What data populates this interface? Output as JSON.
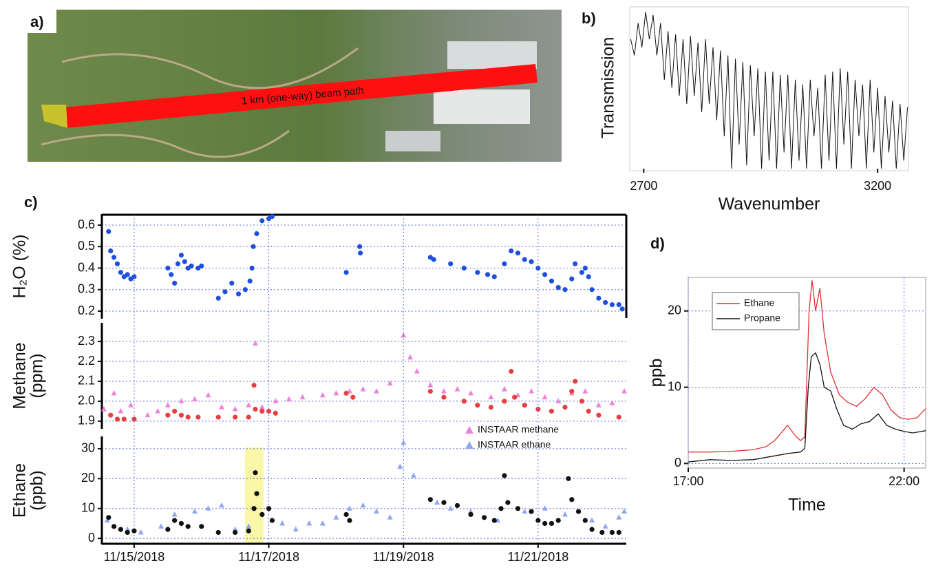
{
  "image": {
    "label": "a)",
    "annotation": "1 km (one-way) beam path"
  },
  "chart_data": [
    {
      "type": "line",
      "label": "b)",
      "xlabel": "Wavenumber",
      "ylabel": "Transmission",
      "xlim": [
        2670,
        3266
      ],
      "ylim": [
        0,
        1
      ],
      "xticks": [
        2700,
        3200
      ],
      "grid": false,
      "series": [
        {
          "color": "#111111",
          "x": [
            2672,
            2680,
            2688,
            2696,
            2704,
            2712,
            2720,
            2728,
            2736,
            2744,
            2752,
            2760,
            2768,
            2776,
            2784,
            2792,
            2800,
            2808,
            2816,
            2824,
            2832,
            2840,
            2848,
            2856,
            2864,
            2872,
            2880,
            2888,
            2896,
            2904,
            2912,
            2920,
            2928,
            2936,
            2944,
            2952,
            2960,
            2968,
            2976,
            2984,
            2992,
            3000,
            3008,
            3016,
            3024,
            3032,
            3040,
            3048,
            3056,
            3064,
            3072,
            3080,
            3088,
            3096,
            3104,
            3112,
            3120,
            3128,
            3136,
            3144,
            3152,
            3160,
            3168,
            3176,
            3184,
            3192,
            3200,
            3208,
            3216,
            3224,
            3232,
            3240,
            3248,
            3256,
            3264
          ],
          "values": [
            0.8,
            0.7,
            0.9,
            0.75,
            0.97,
            0.8,
            0.95,
            0.7,
            0.9,
            0.55,
            0.85,
            0.5,
            0.83,
            0.45,
            0.8,
            0.4,
            0.82,
            0.45,
            0.78,
            0.35,
            0.8,
            0.4,
            0.75,
            0.3,
            0.73,
            0.2,
            0.7,
            0.0,
            0.68,
            0.15,
            0.66,
            0.02,
            0.64,
            0.2,
            0.62,
            0.0,
            0.6,
            0.05,
            0.6,
            0.0,
            0.58,
            0.1,
            0.58,
            0.0,
            0.55,
            0.05,
            0.52,
            0.0,
            0.55,
            0.2,
            0.5,
            0.0,
            0.58,
            0.05,
            0.6,
            0.0,
            0.62,
            0.15,
            0.6,
            0.0,
            0.55,
            0.2,
            0.52,
            0.0,
            0.55,
            0.1,
            0.5,
            0.0,
            0.45,
            0.1,
            0.42,
            0.0,
            0.4,
            0.05,
            0.38
          ]
        }
      ]
    },
    {
      "type": "scatter",
      "label": "c)",
      "ylabel": "H₂O (%)",
      "xlim": [
        14.52,
        22.31
      ],
      "ylim": [
        0.168,
        0.648
      ],
      "yticks": [
        0.2,
        0.3,
        0.4,
        0.5,
        0.6
      ],
      "grid": true,
      "series": [
        {
          "color": "#1f4fe0",
          "marker": "circle",
          "x": [
            14.62,
            14.65,
            14.7,
            14.75,
            14.8,
            14.85,
            14.9,
            14.95,
            15.0,
            15.5,
            15.55,
            15.6,
            15.65,
            15.7,
            15.75,
            15.8,
            15.85,
            15.95,
            16.0,
            16.25,
            16.35,
            16.45,
            16.55,
            16.65,
            16.72,
            16.75,
            16.77,
            16.82,
            16.9,
            17.0,
            17.05,
            18.15,
            18.35,
            18.36,
            19.4,
            19.45,
            19.7,
            19.9,
            20.1,
            20.25,
            20.35,
            20.5,
            20.6,
            20.7,
            20.8,
            20.9,
            21.0,
            21.1,
            21.2,
            21.3,
            21.4,
            21.5,
            21.55,
            21.65,
            21.7,
            21.75,
            21.8,
            21.9,
            22.0,
            22.1,
            22.2,
            22.25
          ],
          "values": [
            0.57,
            0.48,
            0.45,
            0.42,
            0.38,
            0.36,
            0.37,
            0.35,
            0.36,
            0.4,
            0.37,
            0.33,
            0.42,
            0.46,
            0.43,
            0.4,
            0.41,
            0.4,
            0.41,
            0.26,
            0.29,
            0.33,
            0.28,
            0.3,
            0.34,
            0.4,
            0.5,
            0.56,
            0.62,
            0.63,
            0.64,
            0.38,
            0.5,
            0.47,
            0.45,
            0.44,
            0.42,
            0.4,
            0.38,
            0.37,
            0.36,
            0.42,
            0.48,
            0.47,
            0.44,
            0.43,
            0.4,
            0.37,
            0.34,
            0.31,
            0.3,
            0.35,
            0.42,
            0.38,
            0.4,
            0.36,
            0.3,
            0.26,
            0.24,
            0.23,
            0.23,
            0.21
          ]
        }
      ]
    },
    {
      "type": "scatter",
      "ylabel": [
        "Methane",
        "(ppm)"
      ],
      "xlim": [
        14.52,
        22.31
      ],
      "ylim": [
        1.865,
        2.39
      ],
      "yticks": [
        {
          "value": 1.9,
          "label": "1.9"
        },
        {
          "value": 2,
          "label": "2.0"
        },
        {
          "value": 2.1,
          "label": "2.1"
        },
        {
          "value": 2.2,
          "label": "2.2"
        },
        {
          "value": 2.3,
          "label": "2.3"
        }
      ],
      "grid": true,
      "series": [
        {
          "color": "#ee82dd",
          "marker": "triangle",
          "x": [
            14.55,
            14.7,
            14.8,
            14.95,
            15.2,
            15.35,
            15.5,
            15.7,
            15.9,
            16.1,
            16.3,
            16.5,
            16.7,
            16.8,
            16.9,
            17.1,
            17.3,
            17.5,
            17.8,
            18.0,
            18.2,
            18.4,
            18.6,
            18.8,
            19.0,
            19.1,
            19.2,
            19.4,
            19.6,
            19.8,
            20.0,
            20.3,
            20.5,
            20.7,
            20.9,
            21.1,
            21.3,
            21.5,
            21.7,
            21.9,
            22.1,
            22.28
          ],
          "values": [
            1.96,
            2.04,
            1.95,
            1.98,
            1.93,
            1.95,
            1.98,
            2.0,
            2.01,
            2.03,
            1.97,
            1.96,
            1.98,
            2.29,
            1.97,
            2.0,
            2.01,
            2.02,
            2.03,
            2.04,
            2.05,
            2.06,
            2.05,
            2.09,
            2.33,
            2.22,
            2.15,
            2.08,
            2.05,
            2.06,
            2.04,
            2.02,
            2.06,
            2.03,
            2.05,
            2.02,
            2.0,
            2.04,
            2.05,
            1.98,
            1.99,
            2.05
          ]
        },
        {
          "color": "#e84040",
          "marker": "circle",
          "x": [
            14.65,
            14.75,
            14.85,
            15.0,
            15.5,
            15.6,
            15.7,
            15.8,
            15.95,
            16.25,
            16.5,
            16.7,
            16.78,
            16.8,
            16.9,
            17.0,
            17.1,
            18.15,
            18.25,
            19.4,
            19.6,
            19.9,
            20.1,
            20.3,
            20.5,
            20.6,
            20.65,
            20.8,
            21.0,
            21.2,
            21.4,
            21.5,
            21.55,
            21.65,
            21.75,
            21.9,
            22.2
          ],
          "values": [
            1.93,
            1.91,
            1.91,
            1.91,
            1.93,
            1.95,
            1.93,
            1.92,
            1.92,
            1.92,
            1.92,
            1.92,
            2.08,
            1.96,
            1.95,
            1.95,
            1.94,
            2.04,
            2.02,
            2.05,
            2.02,
            2.0,
            1.98,
            1.97,
            2.0,
            2.15,
            2.02,
            1.98,
            1.96,
            1.95,
            1.97,
            2.05,
            2.1,
            2.0,
            1.95,
            1.93,
            1.92
          ]
        }
      ]
    },
    {
      "type": "scatter",
      "ylabel": [
        "Ethane",
        "(ppb)"
      ],
      "xlim": [
        14.52,
        22.31
      ],
      "ylim": [
        -1.8,
        33.9
      ],
      "yticks": [
        0,
        10,
        20,
        30
      ],
      "grid": true,
      "legend": "top-right",
      "xticks": [
        {
          "value": 15,
          "label": "11/15/2018"
        },
        {
          "value": 17,
          "label": "11/17/2018"
        },
        {
          "value": 19,
          "label": "11/19/2018"
        },
        {
          "value": 21,
          "label": "11/21/2018"
        }
      ],
      "series": [
        {
          "name": "INSTAAR methane",
          "color": "#ee82dd",
          "marker": "triangle",
          "legend_only": true,
          "x": [],
          "values": []
        },
        {
          "name": "INSTAAR ethane",
          "color": "#8fa8ee",
          "marker": "triangle",
          "x": [
            14.6,
            14.9,
            15.1,
            15.4,
            15.6,
            15.9,
            16.1,
            16.3,
            16.5,
            16.7,
            17.2,
            17.4,
            17.6,
            17.8,
            18.0,
            18.2,
            18.4,
            18.6,
            18.8,
            18.95,
            19.0,
            19.15,
            19.5,
            19.7,
            20.0,
            20.4,
            20.8,
            21.1,
            21.4,
            21.8,
            22.0,
            22.2,
            22.28
          ],
          "values": [
            6,
            3,
            2,
            4,
            8,
            9,
            10,
            11,
            3,
            4,
            5,
            3,
            5,
            5,
            7,
            10,
            11,
            9,
            7,
            24,
            32,
            21,
            12,
            10,
            9,
            6,
            9,
            10,
            8,
            6,
            4,
            7,
            9
          ]
        },
        {
          "color": "#111111",
          "marker": "circle",
          "x": [
            14.62,
            14.7,
            14.8,
            14.9,
            15.0,
            15.5,
            15.6,
            15.7,
            15.8,
            16.0,
            16.25,
            16.5,
            16.7,
            16.78,
            16.8,
            16.82,
            16.9,
            17.0,
            17.05,
            18.15,
            18.2,
            19.4,
            19.6,
            19.8,
            20.0,
            20.2,
            20.35,
            20.45,
            20.5,
            20.55,
            20.7,
            20.9,
            21.0,
            21.1,
            21.2,
            21.3,
            21.45,
            21.5,
            21.6,
            21.7,
            21.8,
            21.95,
            22.1,
            22.2
          ],
          "values": [
            7,
            4,
            3,
            2,
            2.5,
            3,
            6,
            5,
            4,
            4,
            2,
            2,
            2.5,
            10,
            22,
            15,
            8,
            10,
            6,
            8,
            6,
            13,
            12,
            11,
            8,
            7,
            6,
            10,
            21,
            12,
            10,
            9,
            6,
            5,
            5,
            6,
            20,
            13,
            9,
            6,
            3,
            2,
            2,
            2
          ]
        }
      ]
    },
    {
      "type": "line",
      "label": "d)",
      "xlabel": "Time",
      "ylabel": "ppb",
      "xlim": [
        17,
        22.5
      ],
      "ylim": [
        -0.6,
        24.4
      ],
      "yticks": [
        0,
        10,
        20
      ],
      "grid": true,
      "legend": "top-left",
      "xticks": [
        {
          "value": 17,
          "label": "17:00"
        },
        {
          "value": 22,
          "label": "22:00"
        }
      ],
      "series": [
        {
          "name": "Ethane",
          "color": "#e03030",
          "x": [
            17.0,
            17.5,
            18.0,
            18.5,
            18.8,
            19.0,
            19.3,
            19.5,
            19.6,
            19.7,
            19.8,
            19.87,
            19.95,
            20.05,
            20.15,
            20.3,
            20.5,
            20.7,
            20.9,
            21.1,
            21.3,
            21.5,
            21.7,
            21.9,
            22.1,
            22.3,
            22.5
          ],
          "values": [
            1.5,
            1.5,
            1.6,
            1.8,
            2.2,
            3,
            5,
            3.5,
            3,
            3.5,
            20,
            24,
            20,
            23,
            17,
            12,
            9,
            8,
            7.5,
            8.5,
            10,
            9,
            7,
            6,
            5.8,
            6,
            7.2
          ]
        },
        {
          "name": "Propane",
          "color": "#111111",
          "x": [
            17.0,
            17.5,
            18.0,
            18.5,
            19.0,
            19.3,
            19.6,
            19.7,
            19.78,
            19.85,
            19.95,
            20.05,
            20.15,
            20.3,
            20.45,
            20.6,
            20.8,
            21.0,
            21.2,
            21.4,
            21.6,
            21.8,
            22.0,
            22.2,
            22.5
          ],
          "values": [
            0.2,
            0.5,
            0.4,
            0.5,
            1,
            1.3,
            1.5,
            2,
            10,
            14,
            14.5,
            13,
            10,
            9.5,
            7,
            5,
            4.5,
            5.2,
            5.5,
            6.5,
            5,
            4.5,
            4.2,
            4,
            4.3
          ]
        }
      ]
    }
  ]
}
